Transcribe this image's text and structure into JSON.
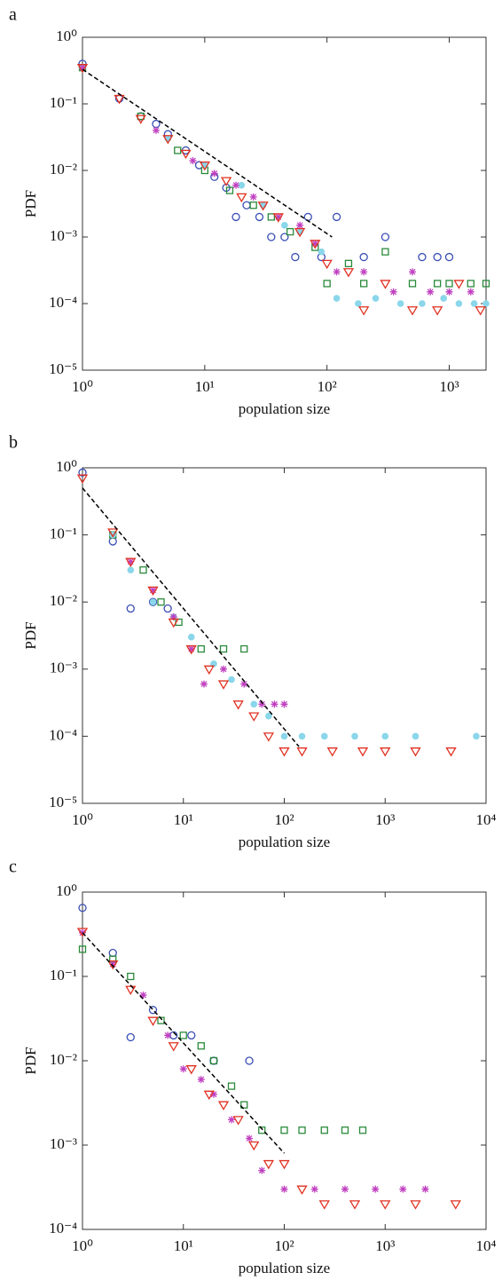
{
  "chart_data": [
    {
      "type": "scatter",
      "panel_label": "a",
      "x_label": "population size",
      "y_label": "PDF",
      "log_scale": true,
      "xlim": [
        1,
        2000
      ],
      "ylim": [
        1e-05,
        1
      ],
      "xticks": [
        {
          "value": 1,
          "label": "10⁰"
        },
        {
          "value": 10,
          "label": "10¹"
        },
        {
          "value": 100,
          "label": "10²"
        },
        {
          "value": 1000,
          "label": "10³"
        }
      ],
      "yticks": [
        {
          "value": 1e-05,
          "label": "10⁻⁵"
        },
        {
          "value": 0.0001,
          "label": "10⁻⁴"
        },
        {
          "value": 0.001,
          "label": "10⁻³"
        },
        {
          "value": 0.01,
          "label": "10⁻²"
        },
        {
          "value": 0.1,
          "label": "10⁻¹"
        },
        {
          "value": 1,
          "label": "10⁰"
        }
      ],
      "series": [
        {
          "color": "#3a4fb5",
          "marker": "circle",
          "x": [
            1,
            2,
            3,
            4,
            5,
            7,
            9,
            12,
            15,
            18,
            22,
            28,
            35,
            45,
            55,
            70,
            90,
            120,
            200,
            300,
            600,
            800,
            1000
          ],
          "values": [
            0.4,
            0.12,
            0.065,
            0.05,
            0.035,
            0.02,
            0.012,
            0.008,
            0.0055,
            0.002,
            0.003,
            0.002,
            0.001,
            0.001,
            0.0005,
            0.002,
            0.0005,
            0.002,
            0.0005,
            0.001,
            0.0005,
            0.0005,
            0.0005
          ]
        },
        {
          "color": "#2a8a3a",
          "marker": "square",
          "x": [
            1,
            3,
            6,
            10,
            16,
            25,
            35,
            50,
            80,
            100,
            150,
            200,
            300,
            500,
            800,
            1000,
            1500,
            2000
          ],
          "values": [
            0.35,
            0.065,
            0.02,
            0.01,
            0.005,
            0.003,
            0.002,
            0.0012,
            0.0007,
            0.0002,
            0.0004,
            0.0002,
            0.0006,
            0.0002,
            0.0002,
            0.0002,
            0.0002,
            0.0002
          ]
        },
        {
          "color": "#8ad6ea",
          "marker": "dot",
          "x": [
            1,
            5,
            10,
            20,
            30,
            45,
            60,
            90,
            120,
            180,
            250,
            400,
            600,
            900,
            1200,
            1600,
            2000
          ],
          "values": [
            0.35,
            0.03,
            0.012,
            0.006,
            0.003,
            0.0015,
            0.0012,
            0.0006,
            0.00012,
            0.0001,
            0.00012,
            0.0001,
            0.0001,
            0.00012,
            0.0001,
            0.0001,
            0.0001
          ]
        },
        {
          "color": "#c040c0",
          "marker": "asterisk",
          "x": [
            1,
            4,
            8,
            12,
            18,
            25,
            40,
            60,
            80,
            120,
            200,
            350,
            500,
            700,
            1000,
            1500
          ],
          "values": [
            0.35,
            0.04,
            0.014,
            0.009,
            0.006,
            0.004,
            0.002,
            0.0015,
            0.0008,
            0.0003,
            0.0003,
            0.00015,
            0.0003,
            0.00015,
            0.00015,
            0.00015
          ]
        },
        {
          "color": "#e03020",
          "marker": "triangle",
          "x": [
            1,
            2,
            3,
            5,
            7,
            10,
            15,
            20,
            30,
            40,
            60,
            80,
            100,
            150,
            200,
            300,
            500,
            800,
            1200,
            1800
          ],
          "values": [
            0.35,
            0.12,
            0.06,
            0.03,
            0.018,
            0.012,
            0.007,
            0.004,
            0.003,
            0.002,
            0.0012,
            0.0008,
            0.0004,
            0.0003,
            8e-05,
            0.0002,
            8e-05,
            8e-05,
            0.0002,
            8e-05
          ]
        }
      ],
      "fit": {
        "color": "#000000",
        "x": [
          1,
          110
        ],
        "values": [
          0.33,
          0.001
        ]
      }
    },
    {
      "type": "scatter",
      "panel_label": "b",
      "x_label": "population size",
      "y_label": "PDF",
      "log_scale": true,
      "xlim": [
        1,
        10000
      ],
      "ylim": [
        1e-05,
        1
      ],
      "xticks": [
        {
          "value": 1,
          "label": "10⁰"
        },
        {
          "value": 10,
          "label": "10¹"
        },
        {
          "value": 100,
          "label": "10²"
        },
        {
          "value": 1000,
          "label": "10³"
        },
        {
          "value": 10000,
          "label": "10⁴"
        }
      ],
      "yticks": [
        {
          "value": 1e-05,
          "label": "10⁻⁵"
        },
        {
          "value": 0.0001,
          "label": "10⁻⁴"
        },
        {
          "value": 0.001,
          "label": "10⁻³"
        },
        {
          "value": 0.01,
          "label": "10⁻²"
        },
        {
          "value": 0.1,
          "label": "10⁻¹"
        },
        {
          "value": 1,
          "label": "10⁰"
        }
      ],
      "series": [
        {
          "color": "#3a4fb5",
          "marker": "circle",
          "x": [
            1,
            2,
            3,
            5,
            7
          ],
          "values": [
            0.85,
            0.08,
            0.008,
            0.01,
            0.008
          ]
        },
        {
          "color": "#2a8a3a",
          "marker": "square",
          "x": [
            2,
            4,
            6,
            9,
            15,
            25,
            40
          ],
          "values": [
            0.1,
            0.03,
            0.01,
            0.005,
            0.002,
            0.002,
            0.002
          ]
        },
        {
          "color": "#8ad6ea",
          "marker": "dot",
          "x": [
            2,
            3,
            5,
            8,
            12,
            20,
            30,
            50,
            70,
            100,
            150,
            250,
            500,
            1000,
            2000,
            8000
          ],
          "values": [
            0.1,
            0.03,
            0.01,
            0.006,
            0.003,
            0.0012,
            0.0007,
            0.0003,
            0.0002,
            0.0001,
            0.0001,
            0.0001,
            0.0001,
            0.0001,
            0.0001,
            0.0001
          ]
        },
        {
          "color": "#c040c0",
          "marker": "asterisk",
          "x": [
            3,
            5,
            8,
            12,
            16,
            25,
            40,
            60,
            80,
            100
          ],
          "values": [
            0.04,
            0.015,
            0.006,
            0.002,
            0.0006,
            0.001,
            0.0006,
            0.0003,
            0.0003,
            0.0003
          ]
        },
        {
          "color": "#e03020",
          "marker": "triangle",
          "x": [
            1,
            2,
            3,
            5,
            8,
            12,
            18,
            25,
            35,
            50,
            70,
            100,
            150,
            300,
            600,
            1000,
            2000,
            4500
          ],
          "values": [
            0.7,
            0.11,
            0.04,
            0.015,
            0.005,
            0.002,
            0.001,
            0.0006,
            0.0003,
            0.0002,
            0.0001,
            6e-05,
            6e-05,
            6e-05,
            6e-05,
            6e-05,
            6e-05,
            6e-05
          ]
        }
      ],
      "fit": {
        "color": "#000000",
        "x": [
          1,
          140
        ],
        "values": [
          0.5,
          7e-05
        ]
      }
    },
    {
      "type": "scatter",
      "panel_label": "c",
      "x_label": "population size",
      "y_label": "PDF",
      "log_scale": true,
      "xlim": [
        1,
        10000
      ],
      "ylim": [
        0.0001,
        1
      ],
      "xticks": [
        {
          "value": 1,
          "label": "10⁰"
        },
        {
          "value": 10,
          "label": "10¹"
        },
        {
          "value": 100,
          "label": "10²"
        },
        {
          "value": 1000,
          "label": "10³"
        },
        {
          "value": 10000,
          "label": "10⁴"
        }
      ],
      "yticks": [
        {
          "value": 0.0001,
          "label": "10⁻⁴"
        },
        {
          "value": 0.001,
          "label": "10⁻³"
        },
        {
          "value": 0.01,
          "label": "10⁻²"
        },
        {
          "value": 0.1,
          "label": "10⁻¹"
        },
        {
          "value": 1,
          "label": "10⁰"
        }
      ],
      "series": [
        {
          "color": "#3a4fb5",
          "marker": "circle",
          "x": [
            1,
            2,
            3,
            5,
            8,
            12,
            20,
            45
          ],
          "values": [
            0.65,
            0.19,
            0.019,
            0.04,
            0.02,
            0.02,
            0.01,
            0.01
          ]
        },
        {
          "color": "#2a8a3a",
          "marker": "square",
          "x": [
            1,
            2,
            3,
            6,
            10,
            15,
            20,
            30,
            40,
            60,
            100,
            150,
            250,
            400,
            600
          ],
          "values": [
            0.21,
            0.16,
            0.1,
            0.03,
            0.02,
            0.015,
            0.01,
            0.005,
            0.003,
            0.0015,
            0.0015,
            0.0015,
            0.0015,
            0.0015,
            0.0015
          ]
        },
        {
          "color": "#c040c0",
          "marker": "asterisk",
          "x": [
            1,
            2,
            4,
            7,
            10,
            15,
            20,
            30,
            45,
            60,
            100,
            200,
            400,
            800,
            1500,
            2500
          ],
          "values": [
            0.33,
            0.14,
            0.06,
            0.02,
            0.008,
            0.006,
            0.004,
            0.002,
            0.0012,
            0.0005,
            0.0003,
            0.0003,
            0.0003,
            0.0003,
            0.0003,
            0.0003
          ]
        },
        {
          "color": "#e03020",
          "marker": "triangle",
          "x": [
            1,
            2,
            3,
            5,
            8,
            12,
            18,
            25,
            35,
            50,
            70,
            100,
            150,
            250,
            500,
            1000,
            2000,
            5000
          ],
          "values": [
            0.34,
            0.14,
            0.07,
            0.03,
            0.015,
            0.008,
            0.004,
            0.003,
            0.002,
            0.001,
            0.0006,
            0.0006,
            0.0003,
            0.0002,
            0.0002,
            0.0002,
            0.0002,
            0.0002
          ]
        }
      ],
      "fit": {
        "color": "#000000",
        "x": [
          1,
          100
        ],
        "values": [
          0.33,
          0.0008
        ]
      }
    }
  ]
}
